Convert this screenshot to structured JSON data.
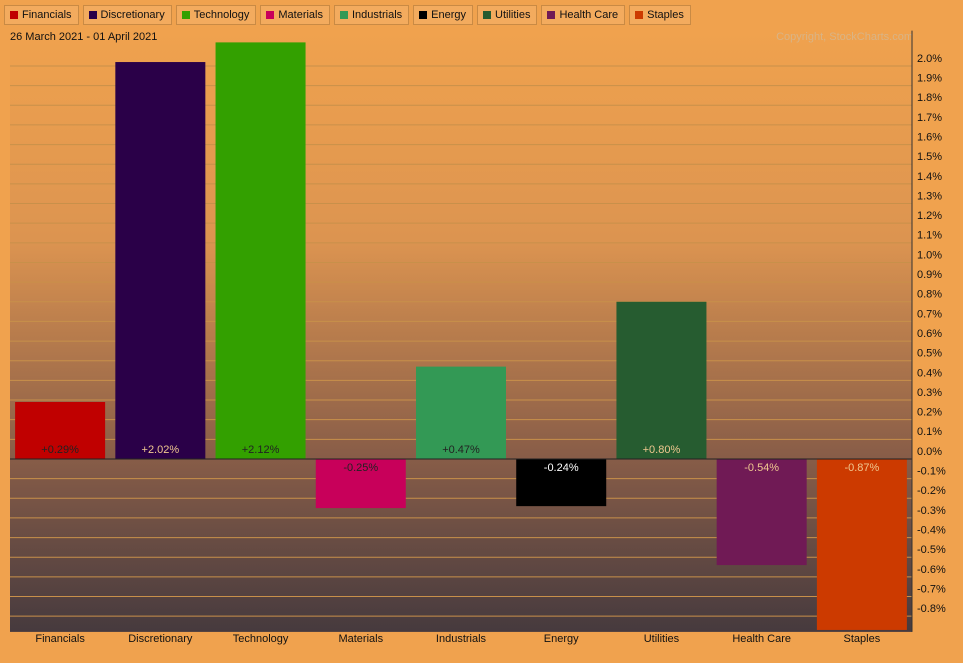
{
  "chart_data": {
    "type": "bar",
    "subtitle": "26 March 2021 - 01 April 2021",
    "annotations": [
      "Copyright, StockCharts.com"
    ],
    "categories": [
      "Financials",
      "Discretionary",
      "Technology",
      "Materials",
      "Industrials",
      "Energy",
      "Utilities",
      "Health Care",
      "Staples"
    ],
    "values": [
      0.29,
      2.02,
      2.12,
      -0.25,
      0.47,
      -0.24,
      0.8,
      -0.54,
      -0.87
    ],
    "value_labels": [
      "+0.29%",
      "+2.02%",
      "+2.12%",
      "-0.25%",
      "+0.47%",
      "-0.24%",
      "+0.80%",
      "-0.54%",
      "-0.87%"
    ],
    "colors": [
      "#c00000",
      "#2a0048",
      "#33a000",
      "#c8005a",
      "#339955",
      "#000000",
      "#265c30",
      "#701a55",
      "#cc3a00"
    ],
    "label_colors": [
      "#222222",
      "#f0c890",
      "#222222",
      "#222222",
      "#222222",
      "#ffffff",
      "#f0c890",
      "#f0c890",
      "#f0c890"
    ],
    "ylim": [
      -0.88,
      2.18
    ],
    "yticks": [
      {
        "value": 2.0,
        "label": "2.0%"
      },
      {
        "value": 1.9,
        "label": "1.9%"
      },
      {
        "value": 1.8,
        "label": "1.8%"
      },
      {
        "value": 1.7,
        "label": "1.7%"
      },
      {
        "value": 1.6,
        "label": "1.6%"
      },
      {
        "value": 1.5,
        "label": "1.5%"
      },
      {
        "value": 1.4,
        "label": "1.4%"
      },
      {
        "value": 1.3,
        "label": "1.3%"
      },
      {
        "value": 1.2,
        "label": "1.2%"
      },
      {
        "value": 1.1,
        "label": "1.1%"
      },
      {
        "value": 1.0,
        "label": "1.0%"
      },
      {
        "value": 0.9,
        "label": "0.9%"
      },
      {
        "value": 0.8,
        "label": "0.8%"
      },
      {
        "value": 0.7,
        "label": "0.7%"
      },
      {
        "value": 0.6,
        "label": "0.6%"
      },
      {
        "value": 0.5,
        "label": "0.5%"
      },
      {
        "value": 0.4,
        "label": "0.4%"
      },
      {
        "value": 0.3,
        "label": "0.3%"
      },
      {
        "value": 0.2,
        "label": "0.2%"
      },
      {
        "value": 0.1,
        "label": "0.1%"
      },
      {
        "value": 0.0,
        "label": "0.0%"
      },
      {
        "value": -0.1,
        "label": "-0.1%"
      },
      {
        "value": -0.2,
        "label": "-0.2%"
      },
      {
        "value": -0.3,
        "label": "-0.3%"
      },
      {
        "value": -0.4,
        "label": "-0.4%"
      },
      {
        "value": -0.5,
        "label": "-0.5%"
      },
      {
        "value": -0.6,
        "label": "-0.6%"
      },
      {
        "value": -0.7,
        "label": "-0.7%"
      },
      {
        "value": -0.8,
        "label": "-0.8%"
      }
    ],
    "grid": true
  }
}
